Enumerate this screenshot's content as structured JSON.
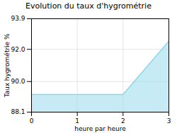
{
  "chart_data": {
    "type": "area",
    "title": "Evolution du taux d'hygrométrie",
    "xlabel": "heure par heure",
    "ylabel": "Taux hygrométrie %",
    "x": [
      0,
      2,
      3
    ],
    "values": [
      89.2,
      89.2,
      92.5
    ],
    "color": "#8dd8ec",
    "xlim": [
      0,
      3
    ],
    "ylim": [
      88.1,
      93.9
    ],
    "xticks": [
      0,
      1,
      2,
      3
    ],
    "yticks": [
      88.1,
      {
        "value": 90.0,
        "label": "90.0"
      },
      {
        "value": 92.0,
        "label": "92.0"
      },
      93.9
    ],
    "grid": true
  }
}
